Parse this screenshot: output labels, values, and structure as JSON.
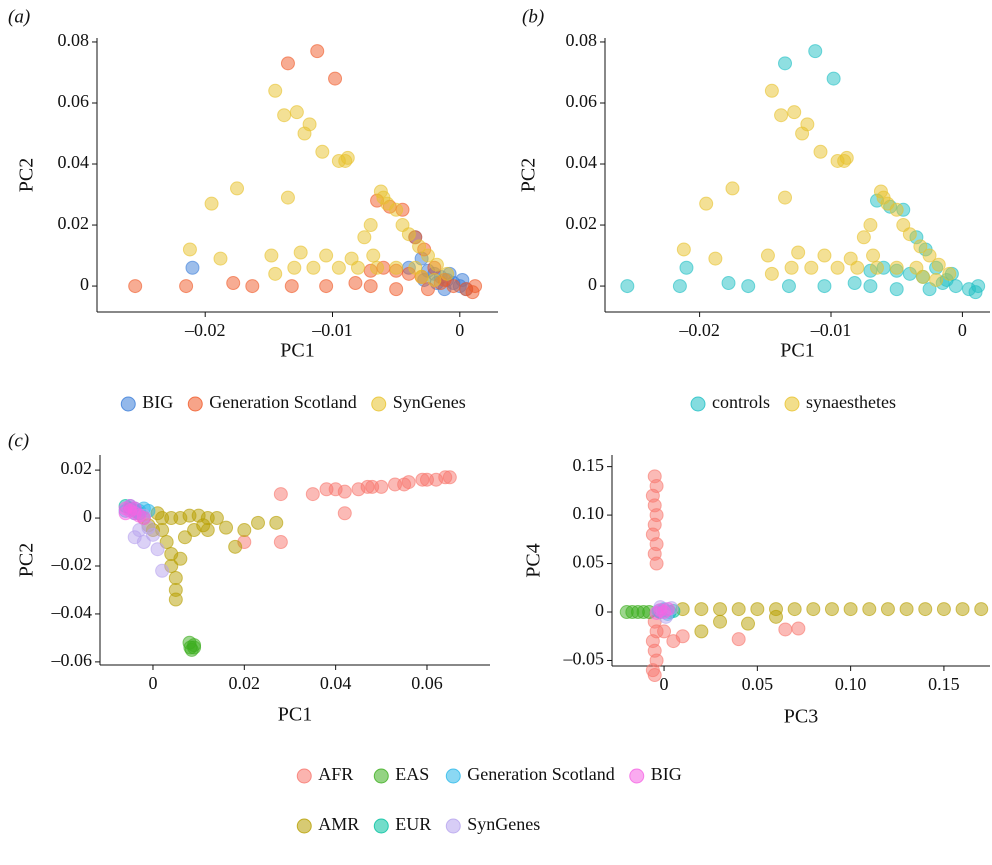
{
  "chart_data": [
    {
      "type": "scatter",
      "panel_label": "(a)",
      "x_label": "PC1",
      "y_label": "PC2",
      "legend": "bottom",
      "xlim": [
        -0.0285,
        0.003
      ],
      "ylim": [
        -0.0085,
        0.0813
      ],
      "xticks": [
        {
          "value": -0.02,
          "label": "–0.02"
        },
        {
          "value": -0.01,
          "label": "–0.01"
        },
        0
      ],
      "yticks": [
        0,
        0.02,
        0.04,
        0.06,
        0.08
      ],
      "series": [
        {
          "name": "BIG",
          "color": "#3b7dd8",
          "x": [
            -0.021,
            -0.0035,
            -0.003,
            -0.0025,
            -0.002,
            -0.0015,
            -0.001,
            -0.0005,
            0,
            0.0005,
            -0.0018,
            -0.0008,
            -0.004,
            -0.0012,
            0.0002,
            -0.0028
          ],
          "values": [
            0.006,
            0.016,
            0.009,
            0.005,
            0.004,
            0.003,
            0.002,
            0.001,
            0,
            -0.001,
            0.001,
            0.004,
            0.006,
            -0.001,
            0.002,
            0.002
          ]
        },
        {
          "name": "Generation Scotland",
          "color": "#f05a28",
          "x": [
            -0.0112,
            -0.0135,
            -0.0098,
            -0.0255,
            -0.0215,
            -0.0178,
            -0.0163,
            -0.0132,
            -0.0105,
            -0.0082,
            -0.007,
            -0.006,
            -0.005,
            -0.004,
            -0.003,
            -0.0065,
            -0.0055,
            -0.0045,
            -0.0035,
            -0.0028,
            -0.002,
            -0.0012,
            -0.0005,
            0.0005,
            0.001,
            -0.007,
            -0.005,
            -0.0025,
            -0.0015,
            0.0012
          ],
          "values": [
            0.077,
            0.073,
            0.068,
            0,
            0,
            0.001,
            0,
            0,
            0,
            0.001,
            0.005,
            0.006,
            0.005,
            0.004,
            0.003,
            0.028,
            0.026,
            0.025,
            0.016,
            0.012,
            0.006,
            0.002,
            0,
            -0.001,
            -0.002,
            0,
            -0.001,
            -0.001,
            0.001,
            0
          ]
        },
        {
          "name": "SynGenes",
          "color": "#e8c22c",
          "x": [
            -0.0145,
            -0.0128,
            -0.0138,
            -0.0122,
            -0.0118,
            -0.0108,
            -0.0088,
            -0.009,
            -0.0095,
            -0.0175,
            -0.0195,
            -0.0135,
            -0.0062,
            -0.006,
            -0.0057,
            -0.005,
            -0.0045,
            -0.004,
            -0.0032,
            -0.0025,
            -0.0018,
            -0.001,
            -0.0212,
            -0.0188,
            -0.0148,
            -0.0125,
            -0.0105,
            -0.0085,
            -0.0068,
            -0.0145,
            -0.013,
            -0.0115,
            -0.0095,
            -0.008,
            -0.0065,
            -0.005,
            -0.0035,
            -0.007,
            -0.0075,
            -0.003,
            -0.002
          ],
          "values": [
            0.064,
            0.057,
            0.056,
            0.05,
            0.053,
            0.044,
            0.042,
            0.041,
            0.041,
            0.032,
            0.027,
            0.029,
            0.031,
            0.029,
            0.027,
            0.025,
            0.02,
            0.017,
            0.013,
            0.01,
            0.007,
            0.004,
            0.012,
            0.009,
            0.01,
            0.011,
            0.01,
            0.009,
            0.01,
            0.004,
            0.006,
            0.006,
            0.006,
            0.006,
            0.006,
            0.006,
            0.006,
            0.02,
            0.016,
            0.003,
            0.002
          ]
        }
      ]
    },
    {
      "type": "scatter",
      "panel_label": "(b)",
      "x_label": "PC1",
      "y_label": "PC2",
      "legend": "bottom",
      "xlim": [
        -0.0272,
        0.0021
      ],
      "ylim": [
        -0.0085,
        0.0813
      ],
      "xticks": [
        {
          "value": -0.02,
          "label": "–0.02"
        },
        {
          "value": -0.01,
          "label": "–0.01"
        },
        0
      ],
      "yticks": [
        0,
        0.02,
        0.04,
        0.06,
        0.08
      ],
      "series": [
        {
          "name": "controls",
          "color": "#1fbfc4",
          "x": [
            -0.0112,
            -0.0135,
            -0.0098,
            -0.0255,
            -0.0215,
            -0.0178,
            -0.0163,
            -0.0132,
            -0.0105,
            -0.0082,
            -0.007,
            -0.006,
            -0.005,
            -0.004,
            -0.003,
            -0.0065,
            -0.0055,
            -0.0045,
            -0.0035,
            -0.0028,
            -0.002,
            -0.0012,
            -0.0005,
            0.0005,
            0.001,
            -0.007,
            -0.005,
            -0.0025,
            -0.0015,
            0.0012,
            -0.021,
            -0.0008
          ],
          "values": [
            0.077,
            0.073,
            0.068,
            0,
            0,
            0.001,
            0,
            0,
            0,
            0.001,
            0.005,
            0.006,
            0.005,
            0.004,
            0.003,
            0.028,
            0.026,
            0.025,
            0.016,
            0.012,
            0.006,
            0.002,
            0,
            -0.001,
            -0.002,
            0,
            -0.001,
            -0.001,
            0.001,
            0,
            0.006,
            0.004
          ]
        },
        {
          "name": "synaesthetes",
          "color": "#e8c22c",
          "x": [
            -0.0145,
            -0.0128,
            -0.0138,
            -0.0122,
            -0.0118,
            -0.0108,
            -0.0088,
            -0.009,
            -0.0095,
            -0.0175,
            -0.0195,
            -0.0135,
            -0.0062,
            -0.006,
            -0.0057,
            -0.005,
            -0.0045,
            -0.004,
            -0.0032,
            -0.0025,
            -0.0018,
            -0.001,
            -0.0212,
            -0.0188,
            -0.0148,
            -0.0125,
            -0.0105,
            -0.0085,
            -0.0068,
            -0.0145,
            -0.013,
            -0.0115,
            -0.0095,
            -0.008,
            -0.0065,
            -0.005,
            -0.0035,
            -0.007,
            -0.0075,
            -0.003,
            -0.002
          ],
          "values": [
            0.064,
            0.057,
            0.056,
            0.05,
            0.053,
            0.044,
            0.042,
            0.041,
            0.041,
            0.032,
            0.027,
            0.029,
            0.031,
            0.029,
            0.027,
            0.025,
            0.02,
            0.017,
            0.013,
            0.01,
            0.007,
            0.004,
            0.012,
            0.009,
            0.01,
            0.011,
            0.01,
            0.009,
            0.01,
            0.004,
            0.006,
            0.006,
            0.006,
            0.006,
            0.006,
            0.006,
            0.006,
            0.02,
            0.016,
            0.003,
            0.002
          ]
        }
      ]
    },
    {
      "type": "scatter",
      "panel_label": "(c)",
      "x_label": "PC1",
      "y_label": "PC2",
      "legend": "bottom",
      "xlim": [
        -0.0116,
        0.0738
      ],
      "ylim": [
        -0.0613,
        0.0263
      ],
      "xticks": [
        0,
        0.02,
        0.04,
        0.06
      ],
      "yticks": [
        {
          "value": -0.06,
          "label": "–0.06"
        },
        {
          "value": -0.04,
          "label": "–0.04"
        },
        {
          "value": -0.02,
          "label": "–0.02"
        },
        0,
        0.02
      ],
      "series": [
        {
          "name": "AFR",
          "color": "#f8766d",
          "x": [
            0.02,
            0.028,
            0.028,
            0.035,
            0.038,
            0.04,
            0.042,
            0.042,
            0.045,
            0.048,
            0.05,
            0.053,
            0.056,
            0.059,
            0.062,
            0.064,
            0.065,
            0.047,
            0.055,
            0.06
          ],
          "values": [
            -0.01,
            0.01,
            -0.01,
            0.01,
            0.012,
            0.012,
            0.002,
            0.011,
            0.012,
            0.013,
            0.013,
            0.014,
            0.015,
            0.016,
            0.016,
            0.017,
            0.017,
            0.013,
            0.014,
            0.016
          ]
        },
        {
          "name": "AMR",
          "color": "#b79f00",
          "x": [
            -0.002,
            0,
            0.002,
            0.004,
            0.006,
            0.008,
            0.01,
            0.012,
            0.014,
            0.003,
            0.004,
            0.004,
            0.005,
            0.005,
            0.005,
            0.006,
            0.002,
            0.007,
            0.009,
            0.012,
            0.02,
            0.023,
            0.027,
            0.018,
            0.001,
            -0.001,
            0.011,
            0.016
          ],
          "values": [
            0,
            -0.005,
            0,
            0,
            0,
            0.001,
            0.001,
            0,
            0,
            -0.01,
            -0.015,
            -0.02,
            -0.025,
            -0.03,
            -0.034,
            -0.017,
            -0.005,
            -0.008,
            -0.005,
            -0.005,
            -0.005,
            -0.002,
            -0.002,
            -0.012,
            0.002,
            -0.003,
            -0.003,
            -0.004
          ]
        },
        {
          "name": "EAS",
          "color": "#3cae1e",
          "x": [
            0.008,
            0.009,
            0.0085,
            0.009,
            0.0082
          ],
          "values": [
            -0.052,
            -0.054,
            -0.055,
            -0.053,
            -0.054
          ]
        },
        {
          "name": "EUR",
          "color": "#00c19f",
          "x": [
            -0.005,
            -0.004,
            -0.006,
            -0.003
          ],
          "values": [
            0.004,
            0.003,
            0.005,
            0.002
          ]
        },
        {
          "name": "Generation Scotland",
          "color": "#2bb8ea",
          "x": [
            -0.005,
            -0.004,
            -0.003,
            -0.002,
            -0.004,
            -0.006,
            -0.001
          ],
          "values": [
            0.005,
            0.004,
            0.003,
            0.004,
            0.002,
            0.003,
            0.003
          ]
        },
        {
          "name": "SynGenes",
          "color": "#b7a4ee",
          "x": [
            -0.003,
            -0.004,
            -0.002,
            0,
            0.001,
            0.002,
            -0.001,
            -0.002
          ],
          "values": [
            -0.005,
            -0.008,
            -0.01,
            -0.007,
            -0.013,
            -0.022,
            -0.004,
            0.001
          ]
        },
        {
          "name": "BIG",
          "color": "#f564e3",
          "x": [
            -0.006,
            -0.005,
            -0.004,
            -0.003,
            -0.005,
            -0.004,
            -0.002,
            -0.006
          ],
          "values": [
            0.004,
            0.003,
            0.002,
            0.001,
            0.005,
            0.004,
            0,
            0.002
          ]
        }
      ]
    },
    {
      "type": "scatter",
      "x_label": "PC3",
      "y_label": "PC4",
      "xlim": [
        -0.0279,
        0.1747
      ],
      "ylim": [
        -0.0557,
        0.162
      ],
      "xticks": [
        0,
        0.05,
        {
          "value": 0.1,
          "label": "0.10"
        },
        0.15
      ],
      "yticks": [
        {
          "value": -0.05,
          "label": "–0.05"
        },
        0,
        0.05,
        {
          "value": 0.1,
          "label": "0.10"
        },
        0.15
      ],
      "series": [
        {
          "color": "#f8766d",
          "x": [
            -0.005,
            -0.004,
            -0.006,
            -0.005,
            -0.004,
            -0.005,
            -0.006,
            -0.004,
            -0.005,
            -0.004,
            -0.005,
            -0.004,
            -0.006,
            -0.005,
            -0.004,
            -0.006,
            -0.005,
            0.005,
            0.01,
            0.04,
            0.065,
            0.072,
            0
          ],
          "values": [
            0.14,
            0.13,
            0.12,
            0.11,
            0.1,
            0.09,
            0.08,
            0.07,
            0.06,
            0.05,
            -0.01,
            -0.02,
            -0.03,
            -0.04,
            -0.05,
            -0.06,
            -0.065,
            -0.03,
            -0.025,
            -0.028,
            -0.018,
            -0.017,
            -0.02
          ]
        },
        {
          "color": "#b79f00",
          "x": [
            0.01,
            0.02,
            0.03,
            0.04,
            0.05,
            0.06,
            0.07,
            0.08,
            0.09,
            0.1,
            0.11,
            0.12,
            0.13,
            0.14,
            0.15,
            0.16,
            0.17,
            0.03,
            0.02,
            0.045,
            0.06
          ],
          "values": [
            0.003,
            0.003,
            0.003,
            0.003,
            0.003,
            0.003,
            0.003,
            0.003,
            0.003,
            0.003,
            0.003,
            0.003,
            0.003,
            0.003,
            0.003,
            0.003,
            0.003,
            -0.01,
            -0.02,
            -0.012,
            -0.005
          ]
        },
        {
          "color": "#3cae1e",
          "x": [
            -0.02,
            -0.017,
            -0.014,
            -0.011,
            -0.008
          ],
          "values": [
            0,
            0,
            0,
            0,
            0
          ]
        },
        {
          "color": "#00c19f",
          "x": [
            -0.002,
            0,
            0.003,
            0.005
          ],
          "values": [
            0,
            0.002,
            0,
            0.001
          ]
        },
        {
          "color": "#2bb8ea",
          "x": [
            0,
            0.002,
            -0.003
          ],
          "values": [
            0.003,
            -0.002,
            0.001
          ]
        },
        {
          "color": "#b7a4ee",
          "x": [
            0.001,
            0.004,
            -0.002
          ],
          "values": [
            -0.005,
            0.004,
            0.005
          ]
        },
        {
          "color": "#f564e3",
          "x": [
            -0.002,
            0,
            0.002,
            -0.004
          ],
          "values": [
            0.002,
            0,
            0.003,
            -0.001
          ]
        }
      ]
    }
  ]
}
